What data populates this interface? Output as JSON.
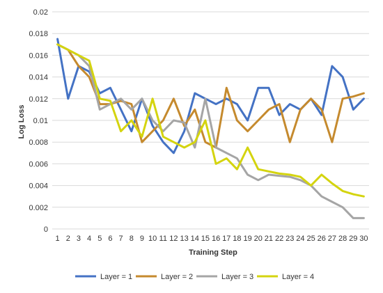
{
  "chart_data": {
    "type": "line",
    "xlabel": "Training Step",
    "ylabel": "Log Loss",
    "ylim": [
      0,
      0.02
    ],
    "yticks": [
      "0",
      "0.002",
      "0.004",
      "0.006",
      "0.008",
      "0.01",
      "0.012",
      "0.014",
      "0.016",
      "0.018",
      "0.02"
    ],
    "categories": [
      1,
      2,
      3,
      4,
      5,
      6,
      7,
      8,
      9,
      10,
      11,
      12,
      13,
      14,
      15,
      16,
      17,
      18,
      19,
      20,
      21,
      22,
      23,
      24,
      25,
      26,
      27,
      28,
      29,
      30
    ],
    "grid": "horizontal",
    "legend_position": "bottom",
    "series": [
      {
        "name": "Layer = 1",
        "color": "#4472C4",
        "values": [
          0.0175,
          0.012,
          0.015,
          0.0145,
          0.0125,
          0.013,
          0.011,
          0.009,
          0.012,
          0.0095,
          0.008,
          0.007,
          0.009,
          0.0125,
          0.012,
          0.0115,
          0.012,
          0.0115,
          0.01,
          0.013,
          0.013,
          0.0105,
          0.0115,
          0.011,
          0.012,
          0.0105,
          0.015,
          0.014,
          0.011,
          0.012
        ]
      },
      {
        "name": "Layer = 2",
        "color": "#C58A2E",
        "values": [
          0.017,
          0.0165,
          0.015,
          0.014,
          0.0115,
          0.0115,
          0.0118,
          0.0115,
          0.008,
          0.009,
          0.01,
          0.012,
          0.0095,
          0.011,
          0.008,
          0.0075,
          0.013,
          0.01,
          0.009,
          0.01,
          0.011,
          0.0115,
          0.008,
          0.011,
          0.012,
          0.011,
          0.008,
          0.012,
          0.0122,
          0.0125
        ]
      },
      {
        "name": "Layer = 3",
        "color": "#A5A5A5",
        "values": [
          0.017,
          0.0165,
          0.016,
          0.015,
          0.011,
          0.0115,
          0.012,
          0.011,
          0.012,
          0.01,
          0.009,
          0.01,
          0.0098,
          0.0075,
          0.012,
          0.0075,
          0.007,
          0.0065,
          0.005,
          0.0045,
          0.005,
          0.0049,
          0.0048,
          0.0045,
          0.004,
          0.003,
          0.0025,
          0.002,
          0.001,
          0.001
        ]
      },
      {
        "name": "Layer = 4",
        "color": "#D4D40F",
        "values": [
          0.017,
          0.0165,
          0.016,
          0.0155,
          0.012,
          0.0118,
          0.009,
          0.01,
          0.0085,
          0.012,
          0.0085,
          0.008,
          0.0075,
          0.008,
          0.01,
          0.006,
          0.0065,
          0.0055,
          0.0075,
          0.0055,
          0.0053,
          0.0051,
          0.005,
          0.0048,
          0.004,
          0.005,
          0.0042,
          0.0035,
          0.0032,
          0.003
        ]
      }
    ]
  }
}
